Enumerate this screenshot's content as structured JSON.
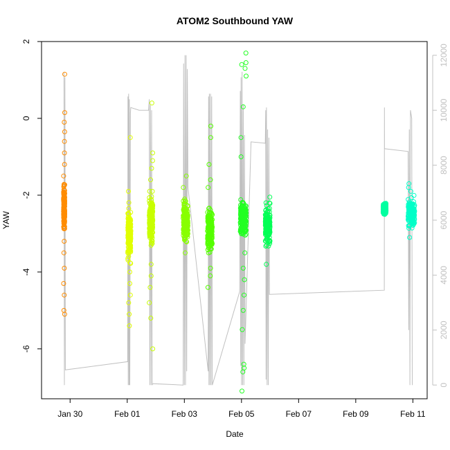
{
  "chart_data": {
    "type": "scatter",
    "title": "ATOM2 Southbound YAW",
    "xlabel": "Date",
    "ylabel": "YAW",
    "y2label": "",
    "xlim": [
      "2026-01-29T00:00",
      "2026-02-11T12:00"
    ],
    "ylim": [
      -7.3,
      2.0
    ],
    "y2lim": [
      -500,
      12500
    ],
    "x_ticks": [
      {
        "t": "2026-01-30T00:00",
        "label": "Jan 30"
      },
      {
        "t": "2026-02-01T00:00",
        "label": "Feb 01"
      },
      {
        "t": "2026-02-03T00:00",
        "label": "Feb 03"
      },
      {
        "t": "2026-02-05T00:00",
        "label": "Feb 05"
      },
      {
        "t": "2026-02-07T00:00",
        "label": "Feb 07"
      },
      {
        "t": "2026-02-09T00:00",
        "label": "Feb 09"
      },
      {
        "t": "2026-02-11T00:00",
        "label": "Feb 11"
      }
    ],
    "y_ticks": [
      2,
      0,
      -2,
      -4,
      -6
    ],
    "y2_ticks": [
      0,
      2000,
      4000,
      6000,
      8000,
      10000,
      12000
    ],
    "grid": false,
    "legend": "none",
    "point_series": [
      {
        "t_start": "2026-01-29T18:30",
        "t_end": "2026-01-29T19:30",
        "center": -2.3,
        "spread": 0.45,
        "color": "#ff8c00",
        "outliers": [
          1.15,
          0.15,
          -0.1,
          -0.35,
          -0.6,
          -0.9,
          -1.2,
          -1.5,
          -3.2,
          -3.5,
          -3.9,
          -4.3,
          -4.6,
          -5.0,
          -5.1
        ]
      },
      {
        "t_start": "2026-02-01T00:30",
        "t_end": "2026-02-01T03:00",
        "center": -3.0,
        "spread": 0.55,
        "color": "#e1ff00",
        "outliers": [
          -0.5,
          -1.9,
          -4.0,
          -4.3,
          -4.6,
          -4.8,
          -5.1,
          -5.4
        ]
      },
      {
        "t_start": "2026-02-01T18:30",
        "t_end": "2026-02-01T21:30",
        "center": -2.7,
        "spread": 0.5,
        "color": "#c8ff00",
        "outliers": [
          0.4,
          -0.9,
          -1.1,
          -1.3,
          -1.6,
          -1.9,
          -3.8,
          -4.1,
          -4.4,
          -4.8,
          -5.2,
          -6.0
        ]
      },
      {
        "t_start": "2026-02-02T23:00",
        "t_end": "2026-02-03T03:00",
        "center": -2.7,
        "spread": 0.4,
        "color": "#88ff00",
        "outliers": [
          -1.5,
          -1.8,
          -2.1,
          -3.2,
          -3.5
        ]
      },
      {
        "t_start": "2026-02-03T19:30",
        "t_end": "2026-02-03T23:30",
        "center": -2.9,
        "spread": 0.45,
        "color": "#55ff00",
        "outliers": [
          -0.2,
          -0.5,
          -1.2,
          -1.6,
          -1.8,
          -3.5,
          -3.9,
          -4.1,
          -4.4
        ]
      },
      {
        "t_start": "2026-02-04T23:00",
        "t_end": "2026-02-05T04:00",
        "center": -2.6,
        "spread": 0.4,
        "color": "#22ff22",
        "outliers": [
          1.7,
          1.45,
          1.4,
          1.3,
          1.1,
          0.3,
          -0.5,
          -1.0,
          -3.5,
          -3.9,
          -4.2,
          -4.6,
          -5.0,
          -5.5,
          -6.4,
          -6.6,
          -6.5,
          -7.1
        ]
      },
      {
        "t_start": "2026-02-05T20:00",
        "t_end": "2026-02-06T00:00",
        "center": -2.8,
        "spread": 0.4,
        "color": "#00ff55",
        "outliers": [
          -2.05,
          -2.2,
          -3.3,
          -3.8
        ]
      },
      {
        "t_start": "2026-02-09T23:00",
        "t_end": "2026-02-10T01:30",
        "center": -2.35,
        "spread": 0.12,
        "color": "#00ffa0",
        "outliers": []
      },
      {
        "t_start": "2026-02-10T20:00",
        "t_end": "2026-02-11T01:30",
        "center": -2.5,
        "spread": 0.3,
        "color": "#00ffc8",
        "outliers": [
          -1.7,
          -1.8,
          -1.9,
          -3.1
        ]
      }
    ],
    "secondary_line": {
      "color": "#c0c0c0",
      "axis": "right",
      "points": [
        [
          "2026-01-29T18:50",
          11400
        ],
        [
          "2026-01-29T19:10",
          0
        ],
        [
          "2026-01-29T19:40",
          11200
        ],
        [
          "2026-01-29T20:00",
          550
        ],
        [
          "2026-02-01T00:20",
          850
        ],
        [
          "2026-02-01T00:35",
          10500
        ],
        [
          "2026-02-01T00:50",
          0
        ],
        [
          "2026-02-01T01:10",
          10600
        ],
        [
          "2026-02-01T01:30",
          0
        ],
        [
          "2026-02-01T01:50",
          10400
        ],
        [
          "2026-02-01T02:10",
          0
        ],
        [
          "2026-02-01T02:40",
          9900
        ],
        [
          "2026-02-01T03:00",
          10100
        ],
        [
          "2026-02-01T10:00",
          10000
        ],
        [
          "2026-02-01T18:00",
          10000
        ],
        [
          "2026-02-01T18:30",
          10400
        ],
        [
          "2026-02-01T19:00",
          0
        ],
        [
          "2026-02-01T19:30",
          10200
        ],
        [
          "2026-02-01T20:00",
          0
        ],
        [
          "2026-02-01T20:30",
          10000
        ],
        [
          "2026-02-01T21:00",
          0
        ],
        [
          "2026-02-01T21:30",
          50
        ],
        [
          "2026-02-02T23:00",
          0
        ],
        [
          "2026-02-02T23:20",
          11700
        ],
        [
          "2026-02-03T00:00",
          0
        ],
        [
          "2026-02-03T00:30",
          12000
        ],
        [
          "2026-02-03T01:00",
          0
        ],
        [
          "2026-02-03T01:30",
          12000
        ],
        [
          "2026-02-03T02:00",
          500
        ],
        [
          "2026-02-03T02:30",
          11500
        ],
        [
          "2026-02-03T03:00",
          7200
        ],
        [
          "2026-02-03T20:00",
          500
        ],
        [
          "2026-02-03T20:20",
          10500
        ],
        [
          "2026-02-03T20:40",
          0
        ],
        [
          "2026-02-03T21:00",
          10600
        ],
        [
          "2026-02-03T21:30",
          0
        ],
        [
          "2026-02-03T22:00",
          10600
        ],
        [
          "2026-02-03T22:30",
          0
        ],
        [
          "2026-02-03T23:00",
          10500
        ],
        [
          "2026-02-03T23:30",
          0
        ],
        [
          "2026-02-04T22:30",
          3400
        ],
        [
          "2026-02-04T23:00",
          10700
        ],
        [
          "2026-02-04T23:20",
          700
        ],
        [
          "2026-02-04T23:40",
          11200
        ],
        [
          "2026-02-05T00:00",
          0
        ],
        [
          "2026-02-05T00:30",
          11400
        ],
        [
          "2026-02-05T01:00",
          0
        ],
        [
          "2026-02-05T01:30",
          10200
        ],
        [
          "2026-02-05T02:00",
          0
        ],
        [
          "2026-02-05T02:30",
          9100
        ],
        [
          "2026-02-05T03:00",
          1500
        ],
        [
          "2026-02-05T08:00",
          8850
        ],
        [
          "2026-02-05T20:00",
          8800
        ],
        [
          "2026-02-05T20:20",
          10000
        ],
        [
          "2026-02-05T20:40",
          200
        ],
        [
          "2026-02-05T21:00",
          10100
        ],
        [
          "2026-02-05T21:30",
          0
        ],
        [
          "2026-02-05T22:00",
          9300
        ],
        [
          "2026-02-05T22:30",
          0
        ],
        [
          "2026-02-05T23:00",
          9000
        ],
        [
          "2026-02-05T23:30",
          3300
        ],
        [
          "2026-02-10T00:00",
          3450
        ],
        [
          "2026-02-10T00:05",
          10100
        ],
        [
          "2026-02-10T00:10",
          8600
        ],
        [
          "2026-02-10T20:00",
          8500
        ],
        [
          "2026-02-10T20:30",
          2000
        ],
        [
          "2026-02-10T21:00",
          9300
        ],
        [
          "2026-02-10T21:30",
          0
        ],
        [
          "2026-02-10T22:00",
          10000
        ],
        [
          "2026-02-10T23:00",
          9700
        ],
        [
          "2026-02-10T23:30",
          0
        ]
      ]
    }
  }
}
